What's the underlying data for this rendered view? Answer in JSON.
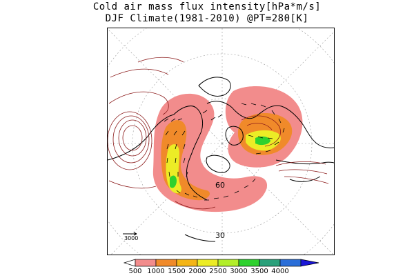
{
  "title": {
    "line1": "Cold air mass flux intensity[hPa*m/s]",
    "line2": "DJF Climate(1981-2010) @PT=280[K]"
  },
  "map": {
    "projection": "north-polar-stereographic",
    "latitude_labels": [
      "60",
      "30"
    ],
    "reference_vector_label": "3000",
    "contour_color": "#8b1a1a",
    "vector_color": "#000000"
  },
  "colorbar": {
    "labels": [
      "500",
      "1000",
      "1500",
      "2000",
      "2500",
      "3000",
      "3500",
      "4000"
    ],
    "colors": [
      "#ffffff",
      "#f28c8c",
      "#f08a2a",
      "#f4b516",
      "#ecec26",
      "#b2ee2a",
      "#2ed12e",
      "#2aa07a",
      "#2a6ed8",
      "#1a16d6"
    ]
  }
}
